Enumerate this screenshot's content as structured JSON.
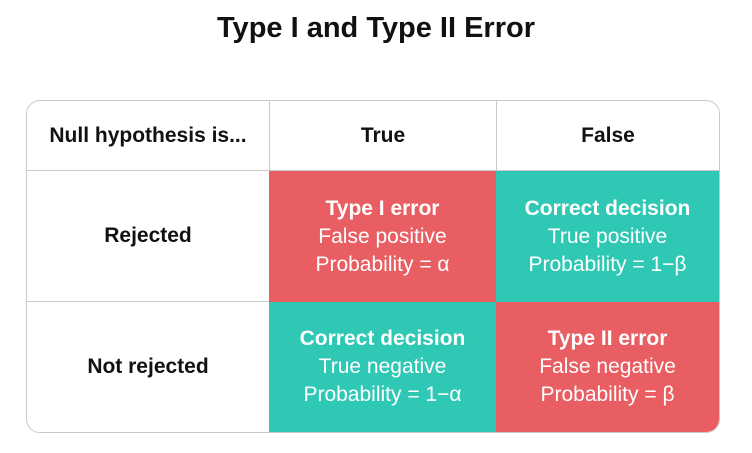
{
  "title": "Type I and Type II Error",
  "table": {
    "corner": "Null hypothesis is...",
    "columns": [
      "True",
      "False"
    ],
    "rows": [
      {
        "label": "Rejected",
        "cells": [
          {
            "title": "Type I error",
            "line1": "False positive",
            "line2": "Probability = α",
            "color": "#e85e62"
          },
          {
            "title": "Correct decision",
            "line1": "True positive",
            "line2": "Probability = 1−β",
            "color": "#2fc8b4"
          }
        ]
      },
      {
        "label": "Not rejected",
        "cells": [
          {
            "title": "Correct decision",
            "line1": "True negative",
            "line2": "Probability = 1−α",
            "color": "#2fc8b4"
          },
          {
            "title": "Type II error",
            "line1": "False negative",
            "line2": "Probability = β",
            "color": "#e85e62"
          }
        ]
      }
    ]
  }
}
